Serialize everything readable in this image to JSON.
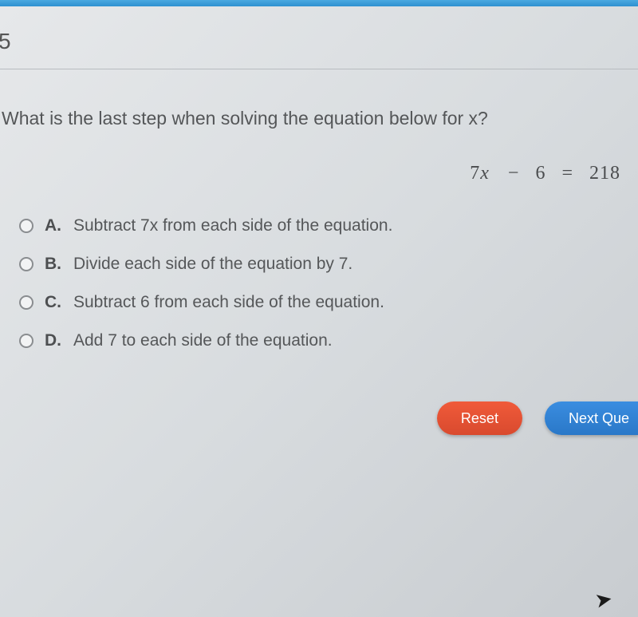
{
  "colors": {
    "titlebar_top": "#4aa8e0",
    "titlebar_bottom": "#2e90d0",
    "bg_start": "#e6e8ea",
    "bg_end": "#c8ccd0",
    "text": "#545658",
    "reset_btn": "#d94a2e",
    "next_btn": "#2a78c8",
    "radio_border": "#8a8d90"
  },
  "question_number": "5",
  "question_text": "What is the last step when solving the equation below for x?",
  "equation": {
    "lhs_coef": "7",
    "lhs_var": "x",
    "op": "−",
    "lhs_const": "6",
    "eq": "=",
    "rhs": "218"
  },
  "choices": [
    {
      "letter": "A.",
      "text": "Subtract 7x from each side of the equation."
    },
    {
      "letter": "B.",
      "text": "Divide each side of the equation by 7."
    },
    {
      "letter": "C.",
      "text": "Subtract 6 from each side of the equation."
    },
    {
      "letter": "D.",
      "text": "Add 7 to each side of the equation."
    }
  ],
  "buttons": {
    "reset": "Reset",
    "next": "Next Que"
  }
}
